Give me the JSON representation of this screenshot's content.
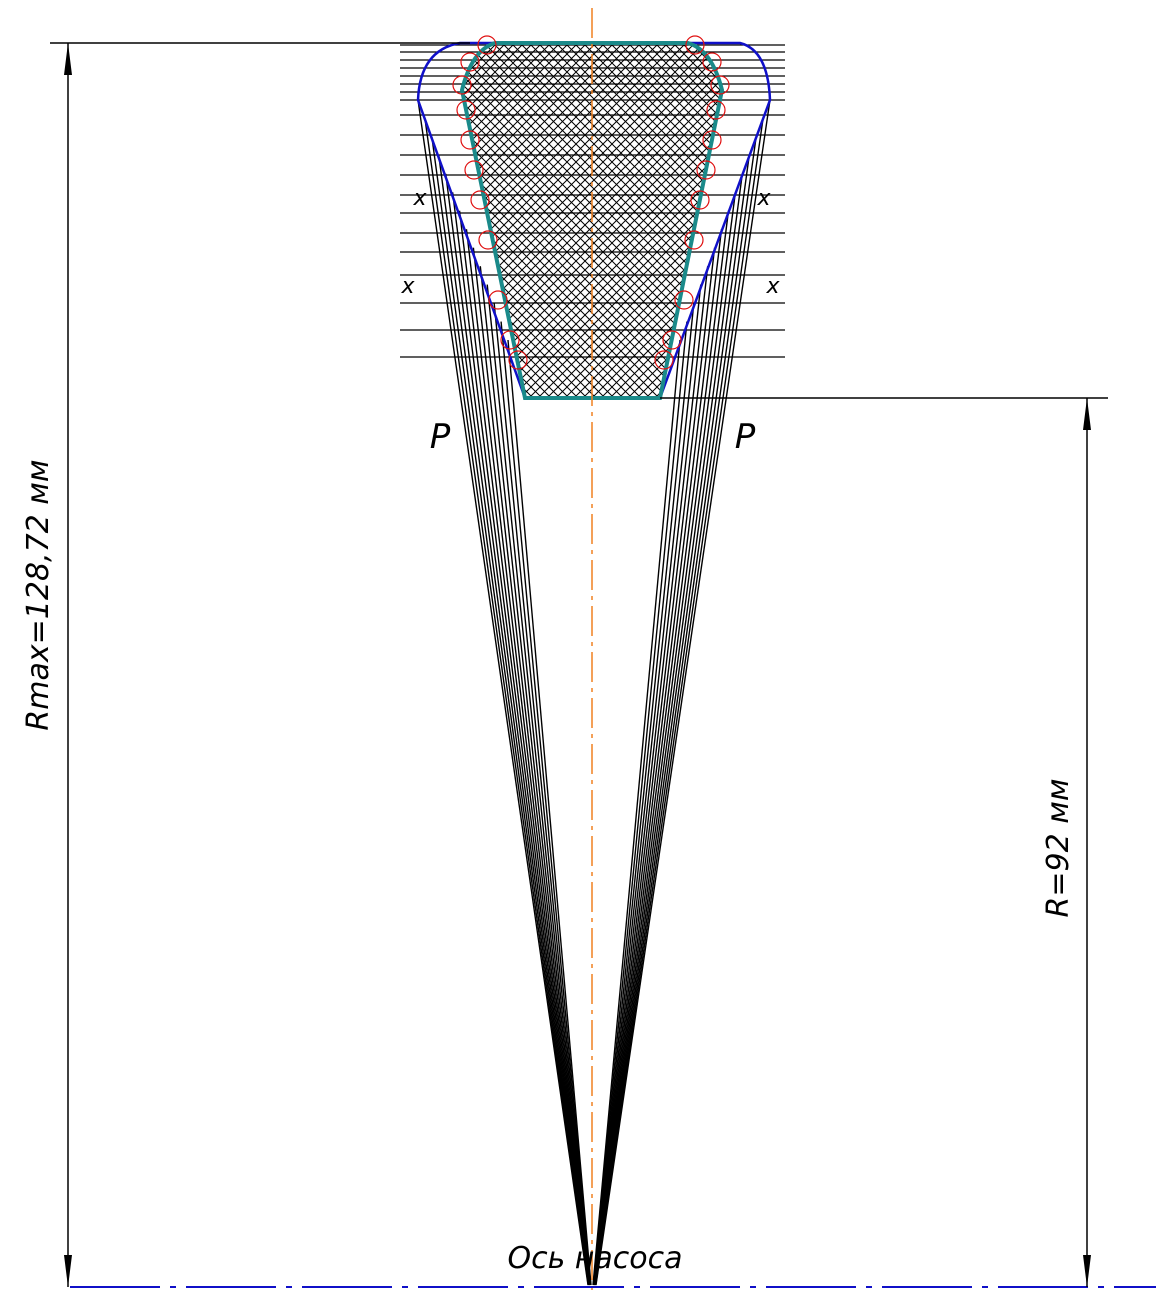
{
  "labels": {
    "rmax": "Rmax=128,72 мм",
    "r": "R=92 мм",
    "p_left": "P",
    "p_right": "P",
    "x_left_1": "x",
    "x_right_1": "x",
    "x_left_2": "x",
    "x_right_2": "x",
    "axis": "Ось насоса"
  }
}
